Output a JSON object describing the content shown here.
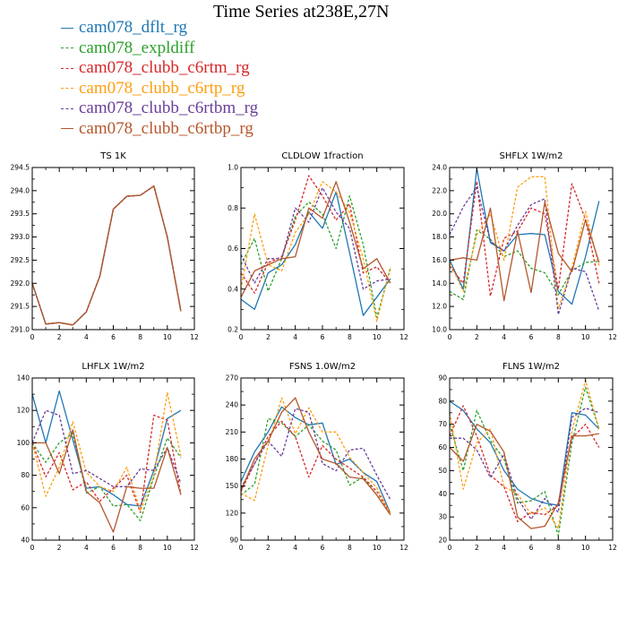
{
  "title": "Time Series at238E,27N",
  "legend": [
    {
      "name": "cam078_dflt_rg",
      "color": "#1f77b4",
      "dash": false
    },
    {
      "name": "cam078_expldiff",
      "color": "#2ca02c",
      "dash": true
    },
    {
      "name": "cam078_clubb_c6rtm_rg",
      "color": "#d62728",
      "dash": true
    },
    {
      "name": "cam078_clubb_c6rtp_rg",
      "color": "#ff9e0e",
      "dash": true
    },
    {
      "name": "cam078_clubb_c6rtbm_rg",
      "color": "#6a3d9a",
      "dash": true
    },
    {
      "name": "cam078_clubb_c6rtbp_rg",
      "color": "#b5562c",
      "dash": false
    }
  ],
  "chart_data": [
    {
      "type": "line",
      "title": "TS   1K",
      "xlim": [
        0,
        12
      ],
      "xticks": [
        0,
        2,
        4,
        6,
        8,
        10,
        12
      ],
      "ylim": [
        291.0,
        294.5
      ],
      "yticks": [
        291.0,
        291.5,
        292.0,
        292.5,
        293.0,
        293.5,
        294.0,
        294.5
      ],
      "ytick_labels": [
        "291.0",
        "291.5",
        "292.0",
        "292.5",
        "293.0",
        "293.5",
        "294.0",
        "294.5"
      ],
      "x": [
        0,
        1,
        2,
        3,
        4,
        5,
        6,
        7,
        8,
        9,
        10,
        11
      ],
      "series": [
        {
          "name": "cam078_dflt_rg",
          "values": [
            292.0,
            291.12,
            291.15,
            291.1,
            291.38,
            292.15,
            293.6,
            293.88,
            293.9,
            294.1,
            293.0,
            291.4
          ]
        },
        {
          "name": "cam078_expldiff",
          "values": [
            292.0,
            291.12,
            291.15,
            291.1,
            291.38,
            292.15,
            293.6,
            293.88,
            293.9,
            294.1,
            293.0,
            291.4
          ]
        },
        {
          "name": "cam078_clubb_c6rtm_rg",
          "values": [
            292.0,
            291.12,
            291.15,
            291.1,
            291.38,
            292.15,
            293.6,
            293.88,
            293.9,
            294.1,
            293.0,
            291.4
          ]
        },
        {
          "name": "cam078_clubb_c6rtp_rg",
          "values": [
            292.0,
            291.12,
            291.15,
            291.1,
            291.38,
            292.15,
            293.6,
            293.88,
            293.9,
            294.1,
            293.0,
            291.4
          ]
        },
        {
          "name": "cam078_clubb_c6rtbm_rg",
          "values": [
            292.0,
            291.12,
            291.15,
            291.1,
            291.38,
            292.15,
            293.6,
            293.88,
            293.9,
            294.1,
            293.0,
            291.4
          ]
        },
        {
          "name": "cam078_clubb_c6rtbp_rg",
          "values": [
            292.0,
            291.12,
            291.15,
            291.1,
            291.38,
            292.15,
            293.6,
            293.88,
            293.9,
            294.1,
            293.0,
            291.4
          ]
        }
      ]
    },
    {
      "type": "line",
      "title": "CLDLOW   1fraction",
      "xlim": [
        0,
        12
      ],
      "xticks": [
        0,
        2,
        4,
        6,
        8,
        10,
        12
      ],
      "ylim": [
        0.2,
        1.0
      ],
      "yticks": [
        0.2,
        0.4,
        0.6,
        0.8,
        1.0
      ],
      "ytick_labels": [
        "0.2",
        "0.4",
        "0.6",
        "0.8",
        "1.0"
      ],
      "x": [
        0,
        1,
        2,
        3,
        4,
        5,
        6,
        7,
        8,
        9,
        10,
        11
      ],
      "series": [
        {
          "name": "cam078_dflt_rg",
          "values": [
            0.35,
            0.3,
            0.48,
            0.52,
            0.62,
            0.78,
            0.7,
            0.88,
            0.58,
            0.27,
            0.36,
            0.45
          ]
        },
        {
          "name": "cam078_expldiff",
          "values": [
            0.52,
            0.65,
            0.39,
            0.55,
            0.76,
            0.83,
            0.77,
            0.6,
            0.86,
            0.62,
            0.26,
            0.5
          ]
        },
        {
          "name": "cam078_clubb_c6rtm_rg",
          "values": [
            0.48,
            0.38,
            0.53,
            0.56,
            0.74,
            0.96,
            0.86,
            0.74,
            0.82,
            0.48,
            0.51,
            0.43
          ]
        },
        {
          "name": "cam078_clubb_c6rtp_rg",
          "values": [
            0.4,
            0.77,
            0.52,
            0.49,
            0.68,
            0.77,
            0.93,
            0.88,
            0.78,
            0.55,
            0.24,
            0.51
          ]
        },
        {
          "name": "cam078_clubb_c6rtbm_rg",
          "values": [
            0.57,
            0.43,
            0.55,
            0.55,
            0.8,
            0.73,
            0.9,
            0.78,
            0.7,
            0.4,
            0.44,
            0.45
          ]
        },
        {
          "name": "cam078_clubb_c6rtbp_rg",
          "values": [
            0.36,
            0.49,
            0.52,
            0.55,
            0.56,
            0.8,
            0.75,
            0.93,
            0.73,
            0.5,
            0.55,
            0.43
          ]
        }
      ]
    },
    {
      "type": "line",
      "title": "SHFLX   1W/m2",
      "xlim": [
        0,
        12
      ],
      "xticks": [
        0,
        2,
        4,
        6,
        8,
        10,
        12
      ],
      "ylim": [
        10.0,
        24.0
      ],
      "yticks": [
        10,
        12,
        14,
        16,
        18,
        20,
        22,
        24
      ],
      "ytick_labels": [
        "10.0",
        "12.0",
        "14.0",
        "16.0",
        "18.0",
        "20.0",
        "22.0",
        "24.0"
      ],
      "x": [
        0,
        1,
        2,
        3,
        4,
        5,
        6,
        7,
        8,
        9,
        10,
        11
      ],
      "series": [
        {
          "name": "cam078_dflt_rg",
          "values": [
            16.0,
            13.5,
            23.9,
            17.5,
            16.8,
            18.2,
            18.3,
            18.2,
            13.3,
            12.2,
            16.3,
            21.1
          ]
        },
        {
          "name": "cam078_expldiff",
          "values": [
            13.3,
            12.6,
            18.6,
            17.8,
            16.3,
            16.8,
            15.3,
            14.9,
            13.0,
            15.1,
            15.8,
            15.9
          ]
        },
        {
          "name": "cam078_clubb_c6rtm_rg",
          "values": [
            15.5,
            14.0,
            22.8,
            12.9,
            17.9,
            18.5,
            20.5,
            20.0,
            13.5,
            22.6,
            19.5,
            14.0
          ]
        },
        {
          "name": "cam078_clubb_c6rtp_rg",
          "values": [
            15.8,
            13.3,
            18.2,
            20.0,
            16.0,
            22.3,
            23.2,
            23.2,
            11.8,
            15.3,
            20.2,
            15.5
          ]
        },
        {
          "name": "cam078_clubb_c6rtbm_rg",
          "values": [
            18.2,
            20.6,
            22.3,
            17.6,
            16.8,
            19.0,
            20.8,
            21.3,
            11.3,
            15.3,
            15.0,
            11.6
          ]
        },
        {
          "name": "cam078_clubb_c6rtbp_rg",
          "values": [
            16.0,
            16.2,
            16.0,
            20.5,
            12.5,
            18.5,
            13.2,
            21.0,
            16.6,
            15.0,
            19.5,
            15.8
          ]
        }
      ]
    },
    {
      "type": "line",
      "title": "LHFLX   1W/m2",
      "xlim": [
        0,
        12
      ],
      "xticks": [
        0,
        2,
        4,
        6,
        8,
        10,
        12
      ],
      "ylim": [
        40,
        140
      ],
      "yticks": [
        40,
        60,
        80,
        100,
        120,
        140
      ],
      "ytick_labels": [
        "40",
        "60",
        "80",
        "100",
        "120",
        "140"
      ],
      "x": [
        0,
        1,
        2,
        3,
        4,
        5,
        6,
        7,
        8,
        9,
        10,
        11
      ],
      "series": [
        {
          "name": "cam078_dflt_rg",
          "values": [
            130,
            100,
            132,
            102,
            72,
            73,
            68,
            62,
            61,
            83,
            115,
            120
          ]
        },
        {
          "name": "cam078_expldiff",
          "values": [
            100,
            88,
            100,
            106,
            69,
            73,
            61,
            62,
            52,
            79,
            103,
            91
          ]
        },
        {
          "name": "cam078_clubb_c6rtm_rg",
          "values": [
            100,
            79,
            94,
            71,
            76,
            64,
            72,
            80,
            57,
            117,
            114,
            68
          ]
        },
        {
          "name": "cam078_clubb_c6rtp_rg",
          "values": [
            100,
            67,
            85,
            113,
            82,
            73,
            70,
            85,
            58,
            80,
            131,
            92
          ]
        },
        {
          "name": "cam078_clubb_c6rtbm_rg",
          "values": [
            100,
            120,
            117,
            81,
            83,
            78,
            73,
            73,
            84,
            83,
            97,
            75
          ]
        },
        {
          "name": "cam078_clubb_c6rtbp_rg",
          "values": [
            100,
            100,
            81,
            108,
            70,
            63,
            45,
            73,
            72,
            72,
            97,
            68
          ]
        }
      ]
    },
    {
      "type": "line",
      "title": "FSNS   1.0W/m2",
      "xlim": [
        0,
        12
      ],
      "xticks": [
        0,
        2,
        4,
        6,
        8,
        10,
        12
      ],
      "ylim": [
        90,
        270
      ],
      "yticks": [
        90,
        120,
        150,
        180,
        210,
        240,
        270
      ],
      "ytick_labels": [
        "90",
        "120",
        "150",
        "180",
        "210",
        "240",
        "270"
      ],
      "x": [
        0,
        1,
        2,
        3,
        4,
        5,
        6,
        7,
        8,
        9,
        10,
        11
      ],
      "series": [
        {
          "name": "cam078_dflt_rg",
          "values": [
            155,
            188,
            210,
            238,
            226,
            218,
            220,
            174,
            180,
            165,
            155,
            120
          ]
        },
        {
          "name": "cam078_expldiff",
          "values": [
            140,
            152,
            225,
            220,
            205,
            218,
            200,
            190,
            151,
            160,
            140,
            118
          ]
        },
        {
          "name": "cam078_clubb_c6rtm_rg",
          "values": [
            144,
            175,
            205,
            222,
            205,
            160,
            195,
            180,
            170,
            160,
            144,
            120
          ]
        },
        {
          "name": "cam078_clubb_c6rtp_rg",
          "values": [
            142,
            134,
            195,
            248,
            208,
            237,
            210,
            210,
            182,
            165,
            148,
            120
          ]
        },
        {
          "name": "cam078_clubb_c6rtbm_rg",
          "values": [
            148,
            175,
            200,
            183,
            236,
            232,
            175,
            167,
            190,
            192,
            162,
            135
          ]
        },
        {
          "name": "cam078_clubb_c6rtbp_rg",
          "values": [
            145,
            180,
            200,
            232,
            248,
            210,
            180,
            175,
            160,
            158,
            140,
            118
          ]
        }
      ]
    },
    {
      "type": "line",
      "title": "FLNS   1W/m2",
      "xlim": [
        0,
        12
      ],
      "xticks": [
        0,
        2,
        4,
        6,
        8,
        10,
        12
      ],
      "ylim": [
        20,
        90
      ],
      "yticks": [
        20,
        30,
        40,
        50,
        60,
        70,
        80,
        90
      ],
      "ytick_labels": [
        "20",
        "30",
        "40",
        "50",
        "60",
        "70",
        "80",
        "90"
      ],
      "x": [
        0,
        1,
        2,
        3,
        4,
        5,
        6,
        7,
        8,
        9,
        10,
        11
      ],
      "series": [
        {
          "name": "cam078_dflt_rg",
          "values": [
            80,
            76,
            68,
            62,
            50,
            42,
            38,
            36,
            35,
            75,
            74,
            68
          ]
        },
        {
          "name": "cam078_expldiff",
          "values": [
            70,
            50,
            76,
            63,
            55,
            36,
            37,
            41,
            22,
            62,
            86,
            68
          ]
        },
        {
          "name": "cam078_clubb_c6rtm_rg",
          "values": [
            65,
            78,
            65,
            48,
            43,
            28,
            32,
            31,
            35,
            64,
            70,
            60
          ]
        },
        {
          "name": "cam078_clubb_c6rtp_rg",
          "values": [
            75,
            42,
            62,
            68,
            43,
            40,
            31,
            34,
            25,
            67,
            89,
            68
          ]
        },
        {
          "name": "cam078_clubb_c6rtbm_rg",
          "values": [
            64,
            64,
            59,
            47,
            57,
            38,
            29,
            38,
            32,
            73,
            77,
            75
          ]
        },
        {
          "name": "cam078_clubb_c6rtbp_rg",
          "values": [
            60,
            54,
            70,
            67,
            58,
            30,
            25,
            26,
            36,
            65,
            65,
            66
          ]
        }
      ]
    }
  ]
}
